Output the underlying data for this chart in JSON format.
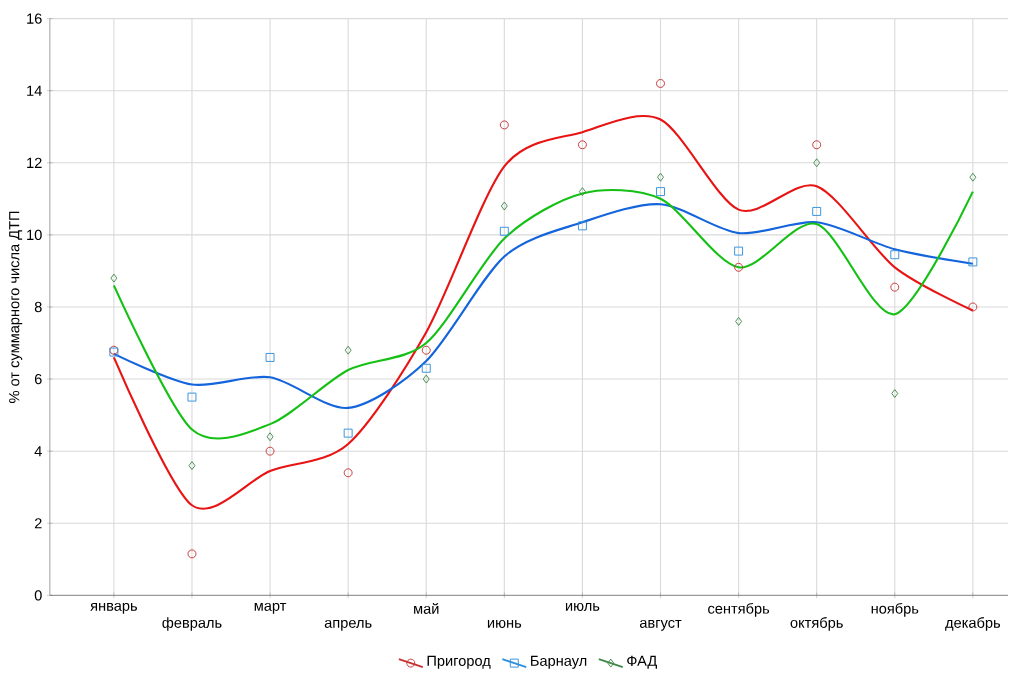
{
  "chart_data": {
    "type": "scatter",
    "ylabel": "% от суммарного числа ДТП",
    "categories": [
      "январь",
      "февраль",
      "март",
      "апрель",
      "май",
      "июнь",
      "июль",
      "август",
      "сентябрь",
      "октябрь",
      "ноябрь",
      "декабрь"
    ],
    "ylim": [
      0,
      16
    ],
    "yticks": [
      0,
      2,
      4,
      6,
      8,
      10,
      12,
      14,
      16
    ],
    "grid": true,
    "legend": "bottom",
    "series": [
      {
        "name": "Пригород",
        "marker": "circle",
        "color": "#c83232",
        "values": [
          6.8,
          1.15,
          4.0,
          3.4,
          6.8,
          13.05,
          12.5,
          14.2,
          9.1,
          12.5,
          8.55,
          8.0
        ]
      },
      {
        "name": "Барнаул",
        "marker": "square",
        "color": "#2f8fdc",
        "values": [
          6.75,
          5.5,
          6.6,
          4.5,
          6.3,
          10.1,
          10.25,
          11.2,
          9.55,
          10.65,
          9.45,
          9.25
        ]
      },
      {
        "name": "ФАД",
        "marker": "diamond",
        "color": "#3f8a4a",
        "values": [
          8.8,
          3.6,
          4.4,
          6.8,
          6.0,
          10.8,
          11.2,
          11.6,
          7.6,
          12.0,
          5.6,
          11.6
        ]
      },
      {
        "type": "line",
        "marker": "none",
        "color": "#e81414",
        "values": [
          6.6,
          2.5,
          3.45,
          4.2,
          7.3,
          11.9,
          12.85,
          13.2,
          10.7,
          11.35,
          9.1,
          7.9
        ]
      },
      {
        "type": "line",
        "marker": "none",
        "color": "#1464dc",
        "values": [
          6.7,
          5.85,
          6.05,
          5.2,
          6.5,
          9.4,
          10.35,
          10.85,
          10.05,
          10.35,
          9.6,
          9.2
        ]
      },
      {
        "type": "line",
        "marker": "none",
        "color": "#14c014",
        "values": [
          8.6,
          4.6,
          4.75,
          6.25,
          7.0,
          9.9,
          11.15,
          11.0,
          9.1,
          10.3,
          7.8,
          11.2
        ]
      }
    ]
  }
}
